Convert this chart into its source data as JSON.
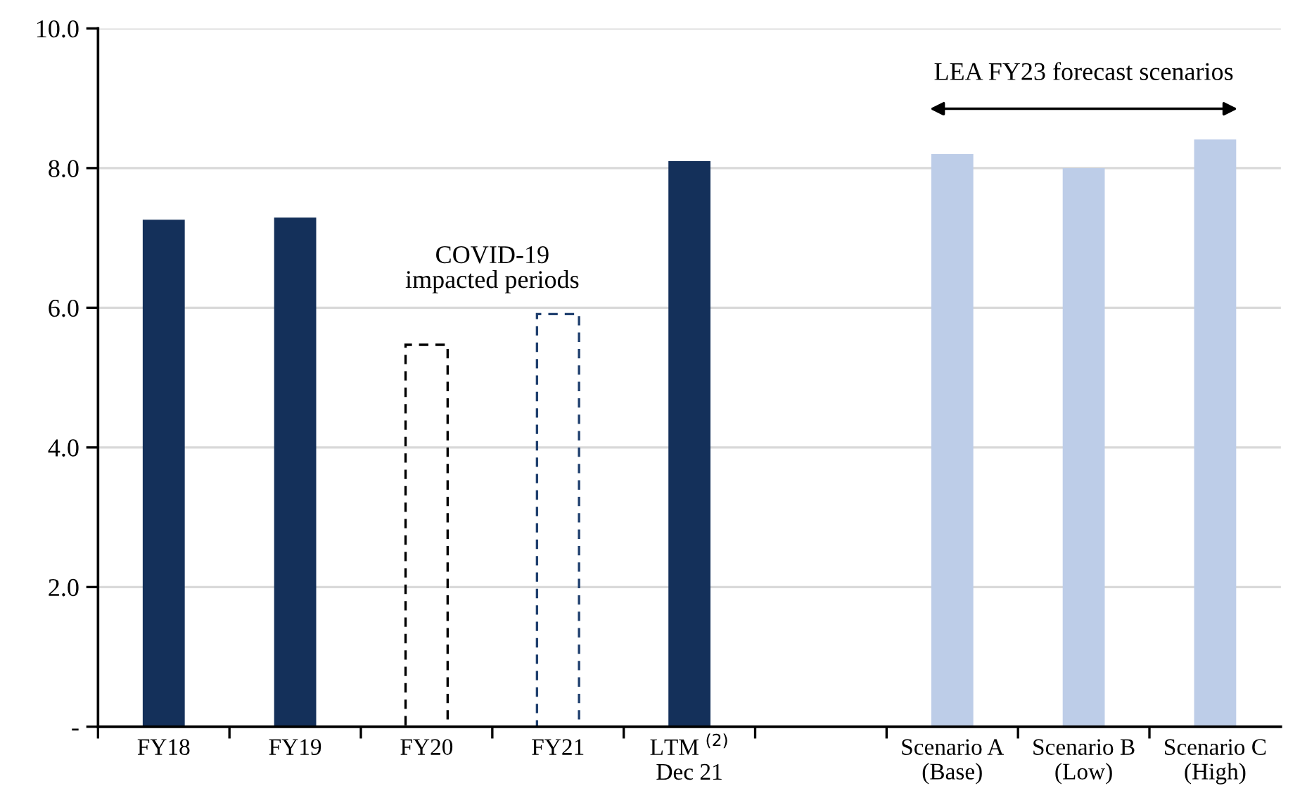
{
  "chart_data": {
    "type": "bar",
    "categories": [
      "FY18",
      "FY19",
      "FY20",
      "FY21",
      "LTM $^{(2)}$\nDec 21",
      null,
      "Scenario A\n(Base)",
      "Scenario B\n(Low)",
      "Scenario C\n(High)"
    ],
    "series": [
      {
        "color": "#14305a",
        "values": [
          7.26,
          7.29,
          null,
          null,
          8.1,
          null,
          null,
          null,
          null
        ]
      },
      {
        "color": "#000000",
        "line_style": "dashed",
        "values": [
          null,
          null,
          5.47,
          null,
          null,
          null,
          null,
          null,
          null
        ]
      },
      {
        "color": "#1f3f6e",
        "line_style": "dashed",
        "values": [
          null,
          null,
          null,
          5.91,
          null,
          null,
          null,
          null,
          null
        ]
      },
      {
        "color": "#bdcde8",
        "values": [
          null,
          null,
          null,
          null,
          null,
          null,
          8.2,
          8.0,
          8.41
        ]
      }
    ],
    "ylim": [
      0,
      10
    ],
    "yticks": [
      {
        "value": 0,
        "label": "-"
      },
      {
        "value": 2,
        "label": "2.0"
      },
      {
        "value": 4,
        "label": "4.0"
      },
      {
        "value": 6,
        "label": "6.0"
      },
      {
        "value": 8,
        "label": "8.0"
      },
      {
        "value": 10,
        "label": "10.0"
      }
    ],
    "grid": "y",
    "annotations": [
      "COVID-19\nimpacted periods",
      "LEA FY23 forecast scenarios"
    ]
  }
}
